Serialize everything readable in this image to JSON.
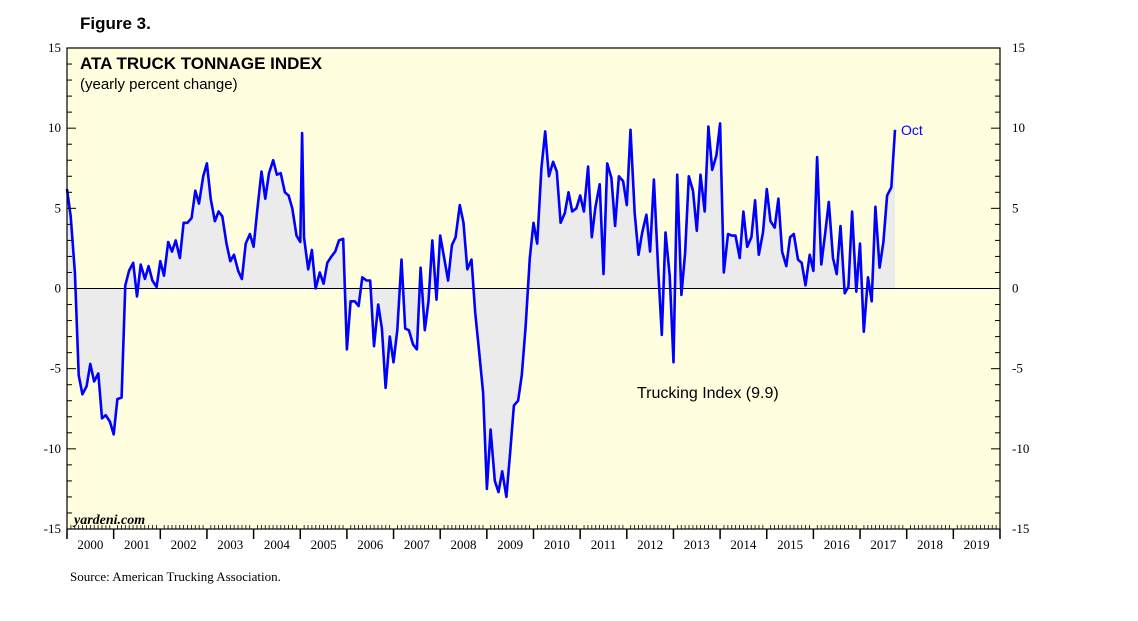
{
  "figure_label": "Figure 3.",
  "source": "Source: American Trucking Association.",
  "watermark": "yardeni.com",
  "colors": {
    "plot_bg": "#ffffe0",
    "series": "#0000ff",
    "fill": "#ebebeb",
    "frame": "#000000"
  },
  "chart_data": {
    "type": "area",
    "title": "ATA TRUCK TONNAGE INDEX",
    "subtitle": "(yearly percent change)",
    "series_label": "Trucking Index (9.9)",
    "end_label": "Oct",
    "ylim": [
      -15,
      15
    ],
    "yticks": [
      15,
      10,
      5,
      0,
      -5,
      -10,
      -15
    ],
    "xlim": [
      2000,
      2020
    ],
    "xtick_labels": [
      "2000",
      "2001",
      "2002",
      "2003",
      "2004",
      "2005",
      "2006",
      "2007",
      "2008",
      "2009",
      "2010",
      "2011",
      "2012",
      "2013",
      "2014",
      "2015",
      "2016",
      "2017",
      "2018",
      "2019"
    ],
    "series": [
      {
        "name": "Trucking Index",
        "points": [
          [
            2000.0,
            6.2
          ],
          [
            2000.08,
            4.5
          ],
          [
            2000.17,
            1.0
          ],
          [
            2000.25,
            -5.4
          ],
          [
            2000.33,
            -6.6
          ],
          [
            2000.42,
            -6.1
          ],
          [
            2000.5,
            -4.7
          ],
          [
            2000.58,
            -5.8
          ],
          [
            2000.67,
            -5.3
          ],
          [
            2000.75,
            -8.1
          ],
          [
            2000.83,
            -7.9
          ],
          [
            2000.92,
            -8.3
          ],
          [
            2001.0,
            -9.1
          ],
          [
            2001.08,
            -6.9
          ],
          [
            2001.17,
            -6.8
          ],
          [
            2001.25,
            0.2
          ],
          [
            2001.33,
            1.1
          ],
          [
            2001.42,
            1.6
          ],
          [
            2001.5,
            -0.5
          ],
          [
            2001.58,
            1.5
          ],
          [
            2001.67,
            0.6
          ],
          [
            2001.75,
            1.4
          ],
          [
            2001.83,
            0.5
          ],
          [
            2001.92,
            0.1
          ],
          [
            2002.0,
            1.7
          ],
          [
            2002.08,
            0.8
          ],
          [
            2002.17,
            2.9
          ],
          [
            2002.25,
            2.3
          ],
          [
            2002.33,
            3.0
          ],
          [
            2002.42,
            1.9
          ],
          [
            2002.5,
            4.1
          ],
          [
            2002.58,
            4.1
          ],
          [
            2002.67,
            4.4
          ],
          [
            2002.75,
            6.1
          ],
          [
            2002.83,
            5.3
          ],
          [
            2002.92,
            7.0
          ],
          [
            2003.0,
            7.8
          ],
          [
            2003.08,
            5.6
          ],
          [
            2003.17,
            4.2
          ],
          [
            2003.25,
            4.8
          ],
          [
            2003.33,
            4.5
          ],
          [
            2003.42,
            2.8
          ],
          [
            2003.5,
            1.7
          ],
          [
            2003.58,
            2.1
          ],
          [
            2003.67,
            1.1
          ],
          [
            2003.75,
            0.6
          ],
          [
            2003.83,
            2.8
          ],
          [
            2003.92,
            3.4
          ],
          [
            2004.0,
            2.6
          ],
          [
            2004.08,
            4.9
          ],
          [
            2004.17,
            7.3
          ],
          [
            2004.25,
            5.6
          ],
          [
            2004.33,
            7.2
          ],
          [
            2004.42,
            8.0
          ],
          [
            2004.5,
            7.1
          ],
          [
            2004.58,
            7.2
          ],
          [
            2004.67,
            6.0
          ],
          [
            2004.75,
            5.8
          ],
          [
            2004.83,
            5.0
          ],
          [
            2004.92,
            3.3
          ],
          [
            2005.0,
            2.9
          ],
          [
            2005.04,
            9.7
          ],
          [
            2005.08,
            3.2
          ],
          [
            2005.17,
            1.2
          ],
          [
            2005.25,
            2.4
          ],
          [
            2005.33,
            0.0
          ],
          [
            2005.42,
            1.0
          ],
          [
            2005.5,
            0.3
          ],
          [
            2005.58,
            1.6
          ],
          [
            2005.67,
            2.0
          ],
          [
            2005.75,
            2.3
          ],
          [
            2005.83,
            3.0
          ],
          [
            2005.92,
            3.1
          ],
          [
            2006.0,
            -3.8
          ],
          [
            2006.08,
            -0.8
          ],
          [
            2006.17,
            -0.8
          ],
          [
            2006.25,
            -1.1
          ],
          [
            2006.33,
            0.7
          ],
          [
            2006.42,
            0.5
          ],
          [
            2006.5,
            0.5
          ],
          [
            2006.58,
            -3.6
          ],
          [
            2006.67,
            -1.0
          ],
          [
            2006.75,
            -2.5
          ],
          [
            2006.83,
            -6.2
          ],
          [
            2006.92,
            -3.0
          ],
          [
            2007.0,
            -4.6
          ],
          [
            2007.08,
            -2.6
          ],
          [
            2007.17,
            1.8
          ],
          [
            2007.25,
            -2.5
          ],
          [
            2007.33,
            -2.6
          ],
          [
            2007.42,
            -3.5
          ],
          [
            2007.5,
            -3.8
          ],
          [
            2007.58,
            1.3
          ],
          [
            2007.67,
            -2.6
          ],
          [
            2007.75,
            -0.8
          ],
          [
            2007.83,
            3.0
          ],
          [
            2007.92,
            -0.7
          ],
          [
            2008.0,
            3.3
          ],
          [
            2008.08,
            2.0
          ],
          [
            2008.17,
            0.5
          ],
          [
            2008.25,
            2.7
          ],
          [
            2008.33,
            3.2
          ],
          [
            2008.42,
            5.2
          ],
          [
            2008.5,
            4.1
          ],
          [
            2008.58,
            1.2
          ],
          [
            2008.67,
            1.8
          ],
          [
            2008.75,
            -1.5
          ],
          [
            2008.83,
            -3.8
          ],
          [
            2008.92,
            -6.5
          ],
          [
            2009.0,
            -12.5
          ],
          [
            2009.08,
            -8.8
          ],
          [
            2009.17,
            -12.0
          ],
          [
            2009.25,
            -12.7
          ],
          [
            2009.33,
            -11.4
          ],
          [
            2009.42,
            -13.0
          ],
          [
            2009.5,
            -10.2
          ],
          [
            2009.58,
            -7.3
          ],
          [
            2009.67,
            -7.0
          ],
          [
            2009.75,
            -5.4
          ],
          [
            2009.83,
            -2.4
          ],
          [
            2009.92,
            1.9
          ],
          [
            2010.0,
            4.1
          ],
          [
            2010.08,
            2.8
          ],
          [
            2010.17,
            7.5
          ],
          [
            2010.25,
            9.8
          ],
          [
            2010.33,
            7.0
          ],
          [
            2010.42,
            7.9
          ],
          [
            2010.5,
            7.3
          ],
          [
            2010.58,
            4.1
          ],
          [
            2010.67,
            4.7
          ],
          [
            2010.75,
            6.0
          ],
          [
            2010.83,
            4.8
          ],
          [
            2010.92,
            5.0
          ],
          [
            2011.0,
            5.8
          ],
          [
            2011.08,
            4.8
          ],
          [
            2011.17,
            7.6
          ],
          [
            2011.25,
            3.2
          ],
          [
            2011.33,
            5.1
          ],
          [
            2011.42,
            6.5
          ],
          [
            2011.5,
            0.9
          ],
          [
            2011.58,
            7.8
          ],
          [
            2011.67,
            6.9
          ],
          [
            2011.75,
            3.9
          ],
          [
            2011.83,
            7.0
          ],
          [
            2011.92,
            6.7
          ],
          [
            2012.0,
            5.2
          ],
          [
            2012.08,
            9.9
          ],
          [
            2012.17,
            4.7
          ],
          [
            2012.25,
            2.1
          ],
          [
            2012.33,
            3.5
          ],
          [
            2012.42,
            4.6
          ],
          [
            2012.5,
            2.3
          ],
          [
            2012.58,
            6.8
          ],
          [
            2012.67,
            1.3
          ],
          [
            2012.75,
            -2.9
          ],
          [
            2012.83,
            3.5
          ],
          [
            2012.92,
            0.8
          ],
          [
            2013.0,
            -4.6
          ],
          [
            2013.08,
            7.1
          ],
          [
            2013.17,
            -0.4
          ],
          [
            2013.25,
            2.2
          ],
          [
            2013.33,
            7.0
          ],
          [
            2013.42,
            6.1
          ],
          [
            2013.5,
            3.6
          ],
          [
            2013.58,
            7.1
          ],
          [
            2013.67,
            4.8
          ],
          [
            2013.75,
            10.1
          ],
          [
            2013.83,
            7.4
          ],
          [
            2013.92,
            8.3
          ],
          [
            2014.0,
            10.3
          ],
          [
            2014.08,
            1.0
          ],
          [
            2014.17,
            3.4
          ],
          [
            2014.25,
            3.3
          ],
          [
            2014.33,
            3.3
          ],
          [
            2014.42,
            1.9
          ],
          [
            2014.5,
            4.8
          ],
          [
            2014.58,
            2.6
          ],
          [
            2014.67,
            3.2
          ],
          [
            2014.75,
            5.5
          ],
          [
            2014.83,
            2.1
          ],
          [
            2014.92,
            3.5
          ],
          [
            2015.0,
            6.2
          ],
          [
            2015.08,
            4.2
          ],
          [
            2015.17,
            3.8
          ],
          [
            2015.25,
            5.6
          ],
          [
            2015.33,
            2.3
          ],
          [
            2015.42,
            1.4
          ],
          [
            2015.5,
            3.2
          ],
          [
            2015.58,
            3.4
          ],
          [
            2015.67,
            1.8
          ],
          [
            2015.75,
            1.6
          ],
          [
            2015.83,
            0.2
          ],
          [
            2015.92,
            2.1
          ],
          [
            2016.0,
            1.1
          ],
          [
            2016.08,
            8.2
          ],
          [
            2016.17,
            1.5
          ],
          [
            2016.25,
            3.4
          ],
          [
            2016.33,
            5.4
          ],
          [
            2016.42,
            1.9
          ],
          [
            2016.5,
            0.9
          ],
          [
            2016.58,
            3.9
          ],
          [
            2016.67,
            -0.3
          ],
          [
            2016.75,
            0.1
          ],
          [
            2016.83,
            4.8
          ],
          [
            2016.92,
            -0.2
          ],
          [
            2017.0,
            2.8
          ],
          [
            2017.08,
            -2.7
          ],
          [
            2017.17,
            0.7
          ],
          [
            2017.25,
            -0.8
          ],
          [
            2017.33,
            5.1
          ],
          [
            2017.42,
            1.3
          ],
          [
            2017.5,
            2.9
          ],
          [
            2017.58,
            5.8
          ],
          [
            2017.67,
            6.3
          ],
          [
            2017.75,
            9.9
          ]
        ]
      }
    ]
  }
}
